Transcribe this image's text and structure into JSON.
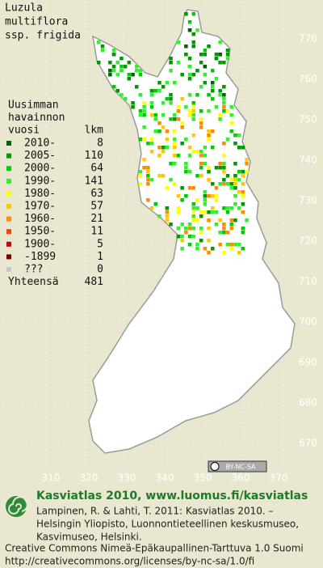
{
  "title": [
    "Luzula",
    "multiflora",
    "ssp. frigida"
  ],
  "legend": {
    "heading": [
      "Uusimman",
      "havainnon"
    ],
    "col_year": "vuosi",
    "col_count": "lkm",
    "rows": [
      {
        "label": "2010-",
        "count": 8,
        "color": "#006400"
      },
      {
        "label": "2005-",
        "count": 110,
        "color": "#009a00"
      },
      {
        "label": "2000-",
        "count": 64,
        "color": "#00cc00"
      },
      {
        "label": "1990-",
        "count": 141,
        "color": "#33ee33"
      },
      {
        "label": "1980-",
        "count": 63,
        "color": "#ffff00"
      },
      {
        "label": "1970-",
        "count": 57,
        "color": "#ffc800"
      },
      {
        "label": "1960-",
        "count": 21,
        "color": "#ff8c00"
      },
      {
        "label": "1950-",
        "count": 11,
        "color": "#ff4000"
      },
      {
        "label": "1900-",
        "count": 5,
        "color": "#cc0000"
      },
      {
        "label": "-1899",
        "count": 1,
        "color": "#7a0000"
      },
      {
        "label": "???",
        "count": 0,
        "color": "#c8c8c8"
      }
    ],
    "total_label": "Yhteensä",
    "total": 481
  },
  "grid": {
    "northing": [
      770,
      760,
      750,
      740,
      730,
      720,
      710,
      700,
      690,
      680,
      670
    ],
    "easting": [
      310,
      320,
      330,
      340,
      350,
      360,
      370
    ]
  },
  "license_badge": "BY-NC-SA",
  "footer": {
    "brand": "Kasviatlas 2010, www.luomus.fi/kasviatlas",
    "citation": [
      "Lampinen, R. & Lahti, T. 2011: Kasviatlas 2010. –",
      "Helsingin Yliopisto, Luonnontieteellinen keskusmuseo,",
      "Kasvimuseo, Helsinki."
    ],
    "license": [
      "Creative Commons Nimeä-Epäkaupallinen-Tarttuva 1.0 Suomi",
      "http://creativecommons.org/licenses/by-nc-sa/1.0/fi"
    ]
  }
}
